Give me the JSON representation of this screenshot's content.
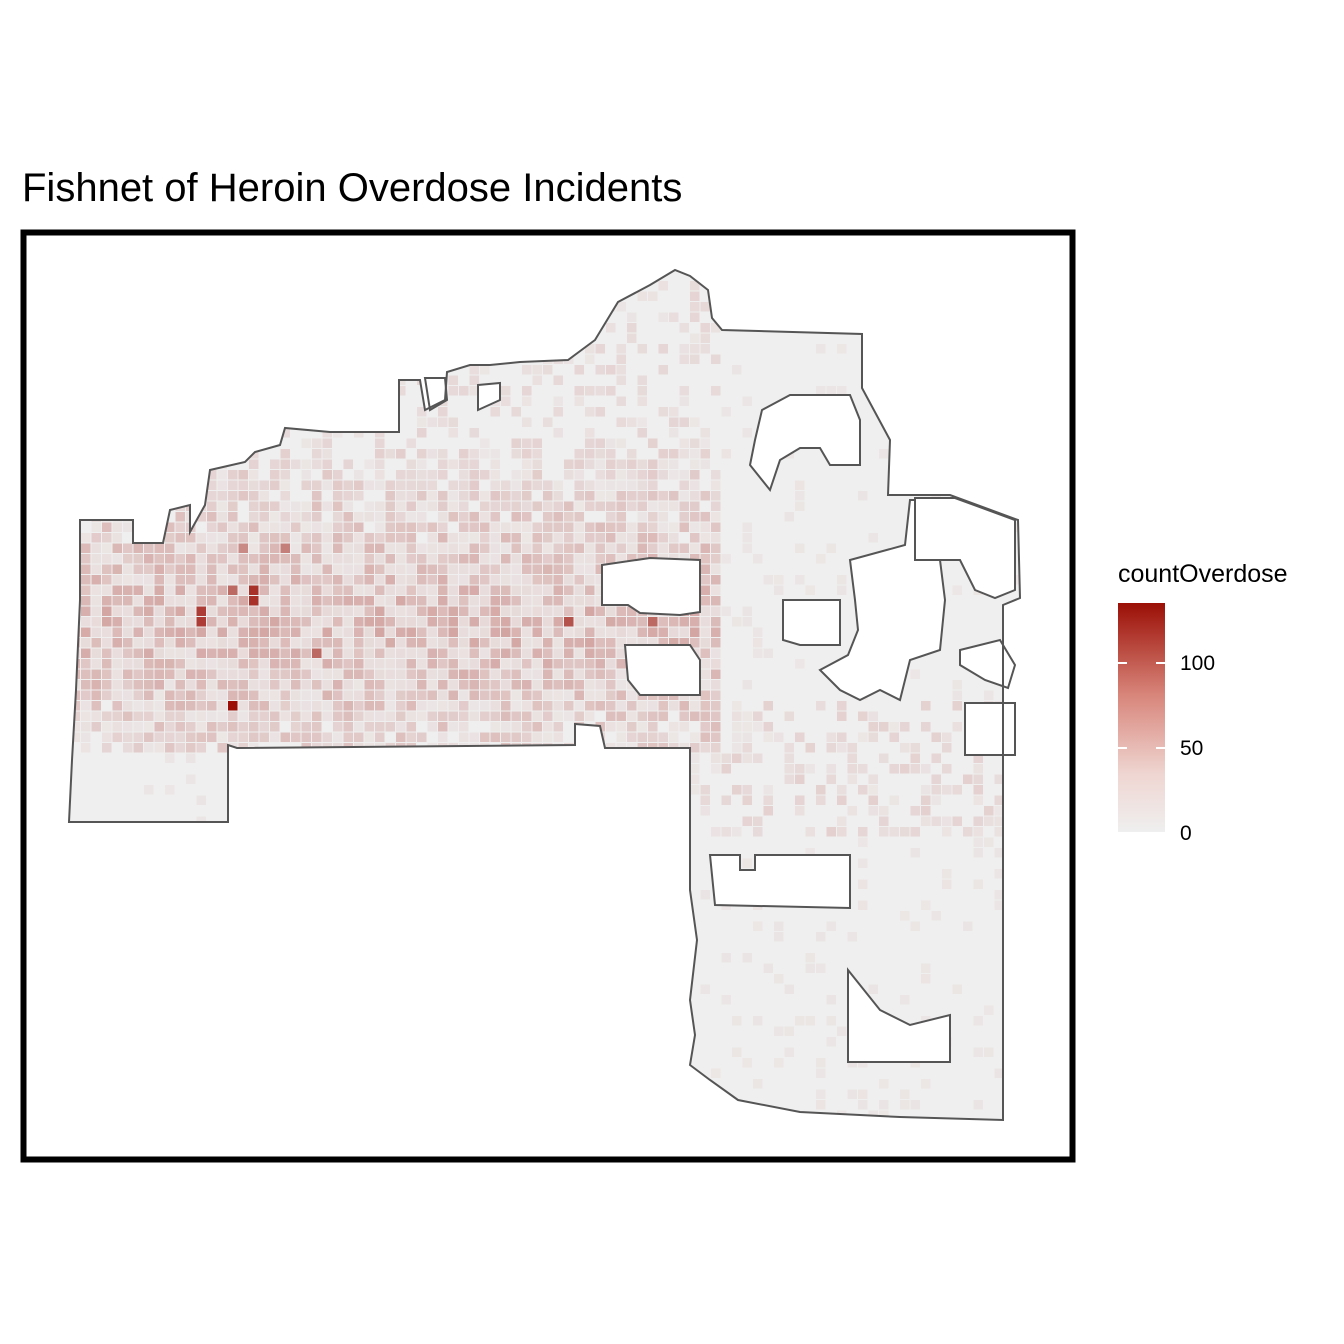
{
  "chart_data": {
    "type": "heatmap",
    "title": "Fishnet of Heroin Overdose Incidents",
    "fill_variable": "countOverdose",
    "fill_scale": {
      "range": [
        0,
        135
      ],
      "low_color": "#efefef",
      "high_color": "#9b0f06",
      "breaks": [
        0,
        50,
        100
      ],
      "break_labels": [
        "0",
        "50",
        "100"
      ]
    },
    "boundary_color": "#555555",
    "background_color": "#efefef",
    "frame_color": "#000000"
  }
}
